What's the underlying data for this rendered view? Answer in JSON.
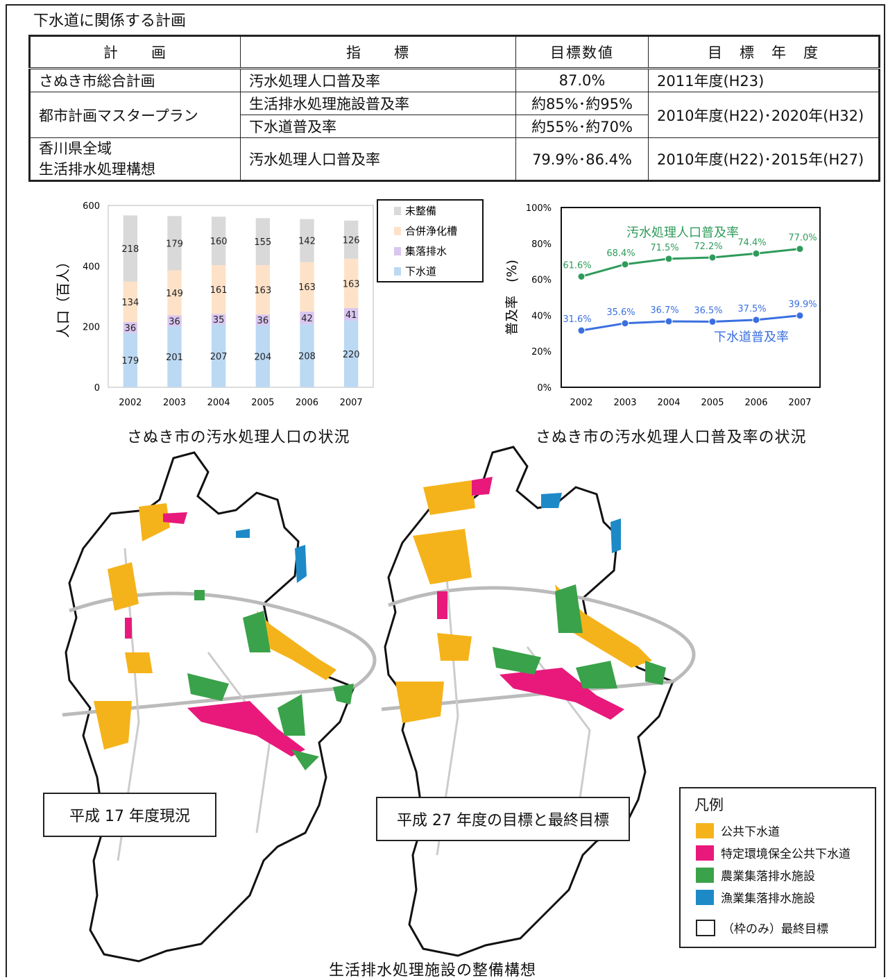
{
  "section_title": "下水道に関係する計画",
  "table": {
    "headers": [
      "計　　画",
      "指　　標",
      "目標数値",
      "目　標　年　度"
    ],
    "rows": [
      {
        "plan": "さぬき市総合計画",
        "indicator": "汚水処理人口普及率",
        "value": "87.0%",
        "year": "2011年度(H23)"
      },
      {
        "plan": "都市計画マスタープラン",
        "indicator": "生活排水処理施設普及率",
        "value": "約85%･約95%",
        "year": "2010年度(H22)･2020年(H32)",
        "indicator2": "下水道普及率",
        "value2": "約55%･約70%"
      },
      {
        "plan_line1": "香川県全域",
        "plan_line2": "生活排水処理構想",
        "indicator": "汚水処理人口普及率",
        "value": "79.9%･86.4%",
        "year": "2010年度(H22)･2015年(H27)"
      }
    ]
  },
  "charts": {
    "caption_left": "さぬき市の汚水処理人口の状況",
    "caption_right": "さぬき市の汚水処理人口普及率の状況"
  },
  "chart_data": [
    {
      "type": "bar",
      "stacked": true,
      "ylabel": "人口（百人）",
      "ylim": [
        0,
        600
      ],
      "yticks": [
        0,
        200,
        400,
        600
      ],
      "categories": [
        "2002",
        "2003",
        "2004",
        "2005",
        "2006",
        "2007"
      ],
      "series": [
        {
          "name": "下水道",
          "color": "#bcd9f3",
          "values": [
            179,
            201,
            207,
            204,
            208,
            220
          ]
        },
        {
          "name": "集落排水",
          "color": "#d9c6f0",
          "values": [
            36,
            36,
            35,
            36,
            42,
            41
          ]
        },
        {
          "name": "合併浄化槽",
          "color": "#fde2c8",
          "values": [
            134,
            149,
            161,
            163,
            163,
            163
          ]
        },
        {
          "name": "未整備",
          "color": "#d9d9d9",
          "values": [
            218,
            179,
            160,
            155,
            142,
            126
          ]
        }
      ],
      "legend_order": [
        "未整備",
        "合併浄化槽",
        "集落排水",
        "下水道"
      ],
      "legend_position": "right"
    },
    {
      "type": "line",
      "ylabel": "普及率　(%)",
      "ylim": [
        0,
        100
      ],
      "yticks": [
        "0%",
        "20%",
        "40%",
        "60%",
        "80%",
        "100%"
      ],
      "x": [
        "2002",
        "2003",
        "2004",
        "2005",
        "2006",
        "2007"
      ],
      "series": [
        {
          "name": "汚水処理人口普及率",
          "color": "#2e9b5a",
          "values": [
            61.6,
            68.4,
            71.5,
            72.2,
            74.4,
            77.0
          ],
          "labels": [
            "61.6%",
            "68.4%",
            "71.5%",
            "72.2%",
            "74.4%",
            "77.0%"
          ]
        },
        {
          "name": "下水道普及率",
          "color": "#3a6fe0",
          "values": [
            31.6,
            35.6,
            36.7,
            36.5,
            37.5,
            39.9
          ],
          "labels": [
            "31.6%",
            "35.6%",
            "36.7%",
            "36.5%",
            "37.5%",
            "39.9%"
          ]
        }
      ]
    }
  ],
  "maps": {
    "label_left": "平成 17 年度現況",
    "label_right": "平成 27 年度の目標と最終目標",
    "caption": "生活排水処理施設の整備構想",
    "legend": {
      "title": "凡例",
      "items": [
        {
          "label": "公共下水道",
          "color": "#f5b31b"
        },
        {
          "label": "特定環境保全公共下水道",
          "color": "#e8197b"
        },
        {
          "label": "農業集落排水施設",
          "color": "#3aa24a"
        },
        {
          "label": "漁業集落排水施設",
          "color": "#1d8ac7"
        }
      ],
      "frame_only": "（枠のみ）最終目標"
    }
  }
}
